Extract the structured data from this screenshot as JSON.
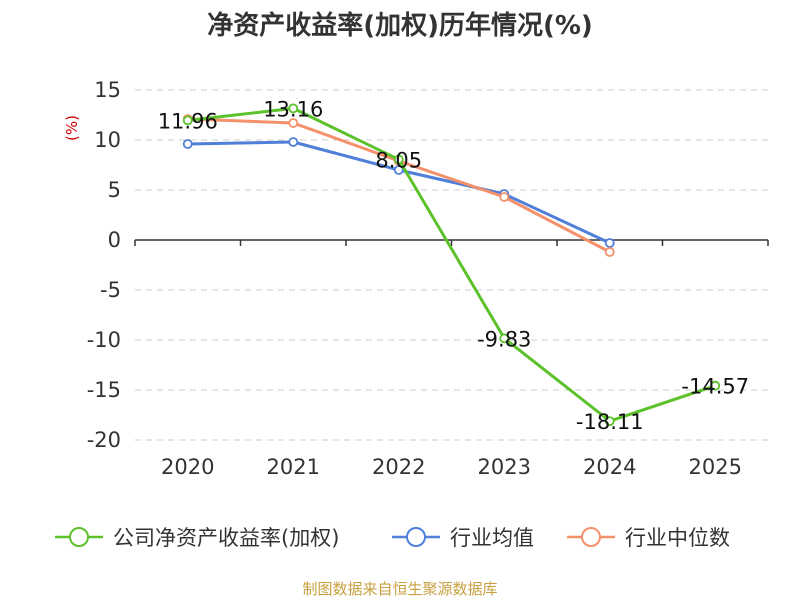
{
  "chart_data": {
    "type": "line",
    "title": "净资产收益率(加权)历年情况(%)",
    "xlabel": "",
    "ylabel": "(%)",
    "categories": [
      "2020",
      "2021",
      "2022",
      "2023",
      "2024",
      "2025"
    ],
    "ylim": [
      -20,
      15
    ],
    "yticks": [
      15,
      10,
      5,
      0,
      -5,
      -10,
      -15,
      -20
    ],
    "grid": true,
    "legend_position": "bottom",
    "series": [
      {
        "name": "公司净资产收益率(加权)",
        "color": "#5cc12a",
        "values": [
          11.96,
          13.16,
          8.05,
          -9.83,
          -18.11,
          -14.57
        ],
        "labels": [
          "11.96",
          "13.16",
          "8.05",
          "-9.83",
          "-18.11",
          "-14.57"
        ]
      },
      {
        "name": "行业均值",
        "color": "#4f7fd8",
        "values": [
          9.6,
          9.8,
          7.0,
          4.6,
          -0.3,
          null
        ]
      },
      {
        "name": "行业中位数",
        "color": "#f4906a",
        "values": [
          12.1,
          11.7,
          7.9,
          4.3,
          -1.2,
          null
        ]
      }
    ],
    "source": "制图数据来自恒生聚源数据库"
  }
}
